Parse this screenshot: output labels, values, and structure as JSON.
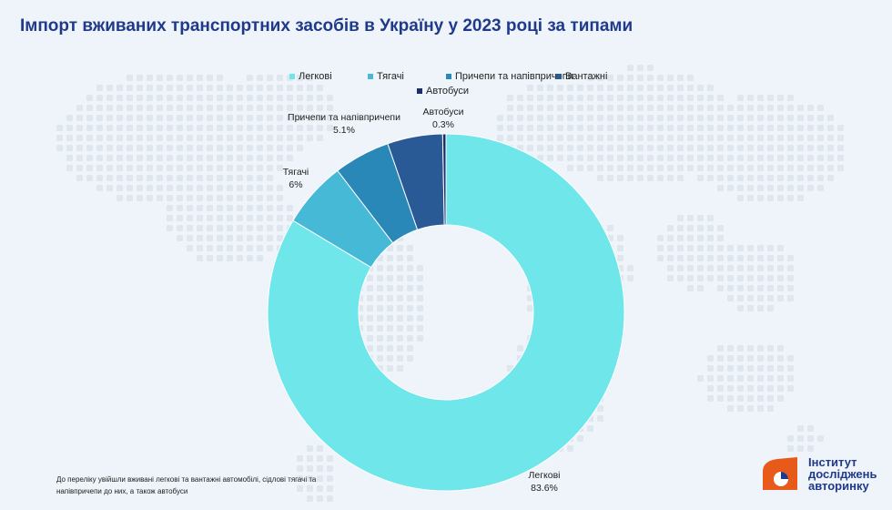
{
  "title": "Імпорт вживаних транспортних засобів в Україну у 2023 році за типами",
  "footnote": "До переліку увійшли вживані легкові та вантажні автомобілі, сідлові тягачі та напівпричепи до них, а також автобуси",
  "logo": {
    "line1": "Інститут",
    "line2": "досліджень",
    "line3": "авторинку"
  },
  "colors": {
    "background": "#eef4fa",
    "title": "#1f3a8a",
    "map_dots": "#dfe6ee"
  },
  "chart_data": {
    "type": "pie",
    "donut": true,
    "title": "Імпорт вживаних транспортних засобів в Україну у 2023 році за типами",
    "legend_position": "top",
    "slices": [
      {
        "name": "Легкові",
        "value": 83.6,
        "label": "83.6%",
        "color": "#6ee6ea"
      },
      {
        "name": "Тягачі",
        "value": 6,
        "label": "6%",
        "color": "#45b9d6"
      },
      {
        "name": "Причепи та напівпричепи",
        "value": 5.1,
        "label": "5.1%",
        "color": "#2a88b8"
      },
      {
        "name": "Вантажні",
        "value": 5,
        "label": "",
        "color": "#2a5a96"
      },
      {
        "name": "Автобуси",
        "value": 0.3,
        "label": "0.3%",
        "color": "#1b2e6a"
      }
    ]
  }
}
